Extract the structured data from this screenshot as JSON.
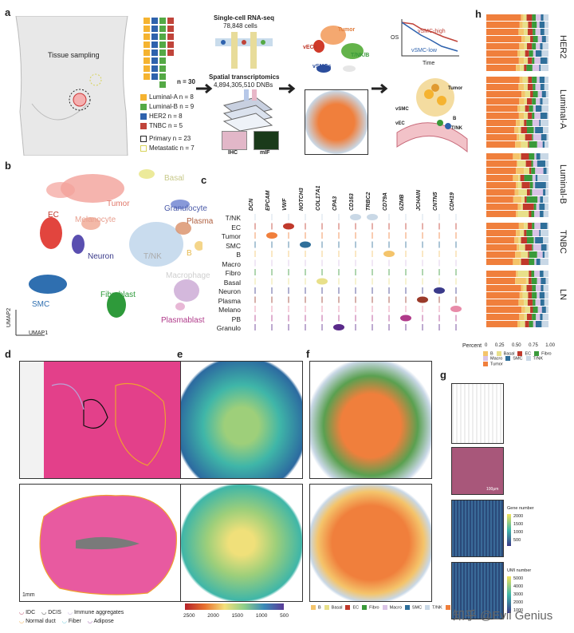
{
  "panels": {
    "a": "a",
    "b": "b",
    "c": "c",
    "d": "d",
    "e": "e",
    "f": "f",
    "g": "g",
    "h": "h"
  },
  "panel_a": {
    "tissue_sampling": "Tissue sampling",
    "n_total": "n = 30",
    "subtypes": [
      {
        "label": "Luminal-A n = 8",
        "color": "#f5b330"
      },
      {
        "label": "Luminal-B n = 9",
        "color": "#54a945"
      },
      {
        "label": "HER2 n = 8",
        "color": "#2e62ad"
      },
      {
        "label": "TNBC n = 5",
        "color": "#c0443a"
      }
    ],
    "origins": [
      {
        "label": "Primary n = 23",
        "color": "#222222"
      },
      {
        "label": "Metastatic n = 7",
        "color": "#d7d35a"
      }
    ],
    "scrna_title": "Single-cell RNA-seq",
    "scrna_cells": "78,848 cells",
    "spatial_title": "Spatial transcriptomics",
    "spatial_dnbs": "4,894,305,510 DNBs",
    "ihc": "IHC",
    "mif": "mIF",
    "umap_labels": [
      "Tumor",
      "vECs",
      "T/NK/B",
      "vSMCs"
    ],
    "survival_high": "vSMC-high",
    "survival_low": "vSMC-low",
    "os": "OS",
    "time": "Time",
    "schematic_labels": [
      "Tumor",
      "vSMC",
      "vEC",
      "B",
      "T/NK"
    ]
  },
  "panel_b": {
    "clusters": [
      "Basal",
      "Tumor",
      "Granulocyte",
      "EC",
      "Melanocyte",
      "Plasma",
      "Neuron",
      "T/NK",
      "B",
      "Macrophage",
      "SMC",
      "Fibroblast",
      "Plasmablast"
    ],
    "umap1": "UMAP1",
    "umap2": "UMAP2"
  },
  "panel_c": {
    "genes": [
      "DCN",
      "EPCAM",
      "VWF",
      "NOTCH3",
      "COL17A1",
      "CPA3",
      "CD163",
      "TRBC2",
      "CD79A",
      "GZMB",
      "JCHAIN",
      "CNTN5",
      "CDH19"
    ],
    "cell_types": [
      "T/NK",
      "EC",
      "Tumor",
      "SMC",
      "B",
      "Macro",
      "Fibro",
      "Basal",
      "Neuron",
      "Plasma",
      "Melano",
      "PB",
      "Granulo"
    ]
  },
  "panel_d": {
    "scale": "1mm",
    "legend": [
      {
        "label": "IDC",
        "color": "#b0234a"
      },
      {
        "label": "DCIS",
        "color": "#111111"
      },
      {
        "label": "Immune aggregates",
        "color": "#b9a3d6"
      },
      {
        "label": "Normal duct",
        "color": "#f0a030"
      },
      {
        "label": "Fiber",
        "color": "#5ec4d8"
      },
      {
        "label": "Adipose",
        "color": "#8c3c9a"
      }
    ]
  },
  "panel_e": {
    "colorbar_ticks": [
      "2500",
      "2000",
      "1500",
      "1000",
      "500"
    ]
  },
  "panel_f": {
    "legend": [
      {
        "label": "B",
        "color": "#f4c46b"
      },
      {
        "label": "Basal",
        "color": "#e8e08a"
      },
      {
        "label": "EC",
        "color": "#c0392b"
      },
      {
        "label": "Fibro",
        "color": "#3a9a3a"
      },
      {
        "label": "Macro",
        "color": "#d9c3e6"
      },
      {
        "label": "SMC",
        "color": "#2f6f9a"
      },
      {
        "label": "T/NK",
        "color": "#c9d8e6"
      },
      {
        "label": "Tumor",
        "color": "#f07f3c"
      }
    ]
  },
  "panel_g": {
    "scale": "100μm",
    "gene_title": "Gene number",
    "gene_ticks": [
      "2000",
      "1500",
      "1000",
      "500"
    ],
    "umi_title": "UMI number",
    "umi_ticks": [
      "5000",
      "4000",
      "3000",
      "2000",
      "1000"
    ]
  },
  "panel_h": {
    "groups": [
      "HER2",
      "Luminal-A",
      "Luminal-B",
      "TNBC",
      "LN"
    ],
    "x_title": "Percent",
    "x_ticks": [
      "0",
      "0.25",
      "0.50",
      "0.75",
      "1.00"
    ],
    "legend": [
      {
        "label": "B",
        "color": "#f4c46b"
      },
      {
        "label": "Basal",
        "color": "#e8e08a"
      },
      {
        "label": "EC",
        "color": "#c0392b"
      },
      {
        "label": "Fibro",
        "color": "#3a9a3a"
      },
      {
        "label": "Macro",
        "color": "#d9c3e6"
      },
      {
        "label": "SMC",
        "color": "#2f6f9a"
      },
      {
        "label": "T/NK",
        "color": "#c9d8e6"
      },
      {
        "label": "Tumor",
        "color": "#f07f3c"
      }
    ]
  },
  "watermark": "知乎 @Evil Genius"
}
